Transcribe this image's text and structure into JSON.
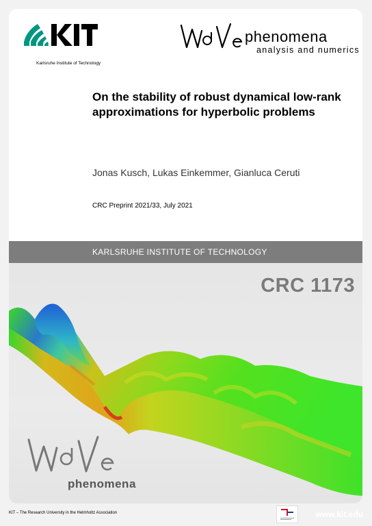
{
  "header": {
    "kit_logo_text": "KIT",
    "kit_subtitle": "Karlsruhe Institute of Technology",
    "wave_logo_text": "WaVe",
    "wave_title": "phenomena",
    "wave_subtitle": "analysis and numerics"
  },
  "paper": {
    "title": "On the stability of robust dynamical low-rank approximations for hyperbolic problems",
    "authors": "Jonas Kusch, Lukas Einkemmer, Gianluca Ceruti",
    "preprint": "CRC Preprint 2021/33, July 2021"
  },
  "band": {
    "institute": "KARLSRUHE INSTITUTE OF TECHNOLOGY"
  },
  "hero": {
    "crc_label": "CRC 1173",
    "wave_logo_text": "WaVe",
    "wave_logo_sub": "phenomena"
  },
  "footer": {
    "left_text": "KIT – The Research University in the Helmholtz Association",
    "right_text": "www.kit.edu"
  },
  "colors": {
    "band": "#7d7d7d",
    "crc_text": "#7a7a7a",
    "kit_green": "#009682"
  }
}
